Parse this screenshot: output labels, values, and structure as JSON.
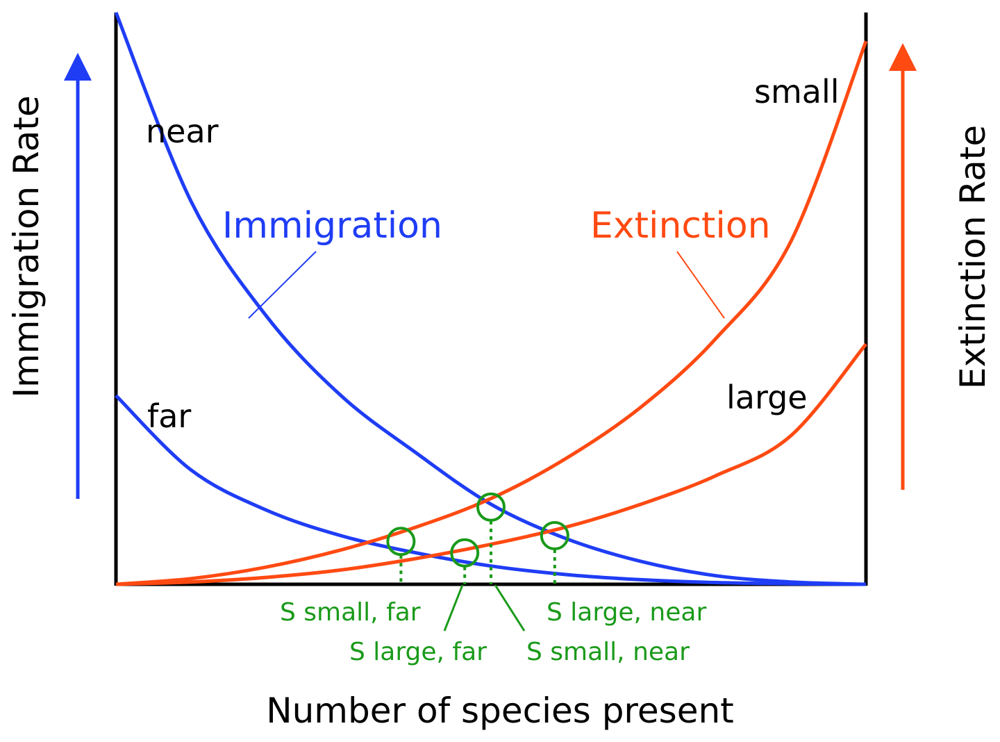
{
  "colors": {
    "immigration": "#1f3df5",
    "extinction": "#ff4a12",
    "equilibrium": "#1a9a1a",
    "axis": "#000000"
  },
  "chart_data": {
    "type": "line",
    "xlabel": "Number of species present",
    "ylabel_left": "Immigration Rate",
    "ylabel_right": "Extinction Rate",
    "xlim": [
      0,
      1
    ],
    "ylim": [
      0,
      1
    ],
    "axis_ticks": "none",
    "grid": false,
    "series_labels": {
      "immigration": "Immigration",
      "extinction": "Extinction"
    },
    "curve_labels": {
      "near": "near",
      "far": "far",
      "small": "small",
      "large": "large"
    },
    "series": [
      {
        "group": "immigration",
        "label_key": "near",
        "x": [
          0,
          0.1,
          0.2,
          0.3,
          0.4,
          0.5,
          0.6,
          0.7,
          0.8,
          0.9,
          1.0
        ],
        "y": [
          1.0,
          0.67,
          0.47,
          0.33,
          0.23,
          0.14,
          0.08,
          0.04,
          0.015,
          0.004,
          0
        ]
      },
      {
        "group": "immigration",
        "label_key": "far",
        "x": [
          0,
          0.1,
          0.2,
          0.3,
          0.4,
          0.5,
          0.6,
          0.7,
          0.8,
          0.9,
          1.0
        ],
        "y": [
          0.33,
          0.2,
          0.13,
          0.085,
          0.055,
          0.032,
          0.017,
          0.008,
          0.003,
          0.001,
          0
        ]
      },
      {
        "group": "extinction",
        "label_key": "small",
        "x": [
          0,
          0.1,
          0.2,
          0.3,
          0.4,
          0.5,
          0.6,
          0.7,
          0.8,
          0.9,
          1.0
        ],
        "y": [
          0,
          0.01,
          0.03,
          0.06,
          0.1,
          0.15,
          0.22,
          0.31,
          0.43,
          0.6,
          0.95
        ]
      },
      {
        "group": "extinction",
        "label_key": "large",
        "x": [
          0,
          0.1,
          0.2,
          0.3,
          0.4,
          0.5,
          0.6,
          0.7,
          0.8,
          0.9,
          1.0
        ],
        "y": [
          0,
          0.004,
          0.012,
          0.025,
          0.045,
          0.07,
          0.1,
          0.14,
          0.19,
          0.26,
          0.42
        ]
      }
    ],
    "equilibria": [
      {
        "label": "S small, far",
        "x": 0.38,
        "y": 0.075
      },
      {
        "label": "S large, far",
        "x": 0.465,
        "y": 0.055
      },
      {
        "label": "S small, near",
        "x": 0.5,
        "y": 0.135
      },
      {
        "label": "S large, near",
        "x": 0.585,
        "y": 0.085
      }
    ]
  }
}
